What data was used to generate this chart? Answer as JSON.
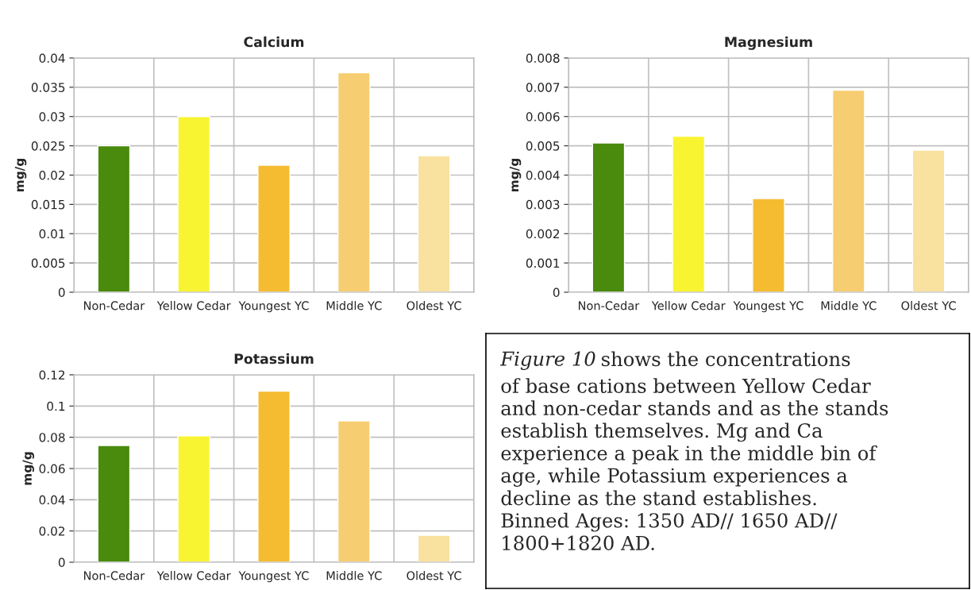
{
  "chart_data": [
    {
      "type": "bar",
      "title": "Calcium",
      "ylabel": "mg/g",
      "categories": [
        "Non-Cedar",
        "Yellow Cedar",
        "Youngest YC",
        "Middle YC",
        "Oldest YC"
      ],
      "values": [
        0.025,
        0.03,
        0.0217,
        0.0375,
        0.0233
      ],
      "colors": [
        "#4a8a0c",
        "#f8f432",
        "#f5bc32",
        "#f7cd72",
        "#f9e1a0"
      ],
      "ylim": [
        0,
        0.04
      ],
      "yticks": [
        0,
        0.005,
        0.01,
        0.015,
        0.02,
        0.025,
        0.03,
        0.035,
        0.04
      ],
      "grid": true
    },
    {
      "type": "bar",
      "title": "Magnesium",
      "ylabel": "mg/g",
      "categories": [
        "Non-Cedar",
        "Yellow Cedar",
        "Youngest YC",
        "Middle YC",
        "Oldest YC"
      ],
      "values": [
        0.0051,
        0.00533,
        0.0032,
        0.0069,
        0.00485
      ],
      "colors": [
        "#4a8a0c",
        "#f8f432",
        "#f5bc32",
        "#f7cd72",
        "#f9e1a0"
      ],
      "ylim": [
        0,
        0.008
      ],
      "yticks": [
        0,
        0.001,
        0.002,
        0.003,
        0.004,
        0.005,
        0.006,
        0.007,
        0.008
      ],
      "grid": true
    },
    {
      "type": "bar",
      "title": "Potassium",
      "ylabel": "mg/g",
      "categories": [
        "Non-Cedar",
        "Yellow Cedar",
        "Youngest YC",
        "Middle YC",
        "Oldest YC"
      ],
      "values": [
        0.0747,
        0.081,
        0.1095,
        0.0905,
        0.0172
      ],
      "colors": [
        "#4a8a0c",
        "#f8f432",
        "#f5bc32",
        "#f7cd72",
        "#f9e1a0"
      ],
      "ylim": [
        0,
        0.12
      ],
      "yticks": [
        0,
        0.02,
        0.04,
        0.06,
        0.08,
        0.1,
        0.12
      ],
      "grid": true
    },
    {
      "type": "other",
      "annotations": [
        "Figure 10",
        "shows the concentrations of base cations between Yellow Cedar and non-cedar stands and as the stands establish themselves. Mg and Ca experience a peak in the middle bin of age, while Potassium experiences a decline as the stand establishes. Binned Ages: 1350 AD// 1650 AD// 1800+1820 AD."
      ]
    }
  ]
}
